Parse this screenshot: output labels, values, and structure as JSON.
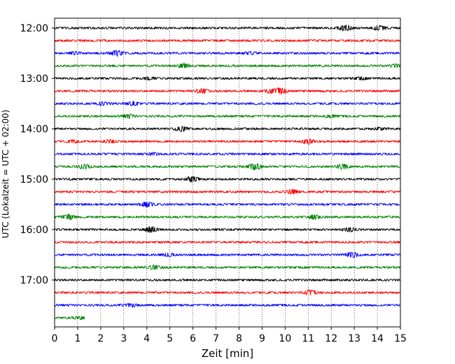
{
  "chart_data": {
    "type": "line",
    "title": "",
    "xlabel": "Zeit  [min]",
    "ylabel": "UTC (Lokalzeit = UTC + 02:00)",
    "xlim": [
      0,
      15
    ],
    "x_ticks": [
      "0",
      "1",
      "2",
      "3",
      "4",
      "5",
      "6",
      "7",
      "8",
      "9",
      "10",
      "11",
      "12",
      "13",
      "14",
      "15"
    ],
    "y_ticks": [
      {
        "label": "12:00",
        "trace": 0
      },
      {
        "label": "13:00",
        "trace": 4
      },
      {
        "label": "14:00",
        "trace": 8
      },
      {
        "label": "15:00",
        "trace": 12
      },
      {
        "label": "16:00",
        "trace": 16
      },
      {
        "label": "17:00",
        "trace": 20
      }
    ],
    "grid": "vertical dotted",
    "trace_interval_min": 15,
    "color_cycle": [
      "#000000",
      "#ff0000",
      "#0000ff",
      "#008000"
    ],
    "traces": [
      {
        "start": "12:00",
        "end_min": 15,
        "events": [
          [
            12.6,
            0.9
          ],
          [
            14.1,
            0.7
          ]
        ]
      },
      {
        "start": "12:15",
        "end_min": 15,
        "events": []
      },
      {
        "start": "12:30",
        "end_min": 15,
        "events": [
          [
            0.9,
            0.4
          ],
          [
            2.7,
            0.8
          ],
          [
            8.5,
            0.3
          ]
        ]
      },
      {
        "start": "12:45",
        "end_min": 15,
        "events": [
          [
            5.6,
            0.7
          ],
          [
            14.8,
            0.4
          ]
        ]
      },
      {
        "start": "13:00",
        "end_min": 15,
        "events": [
          [
            4.1,
            0.3
          ],
          [
            13.3,
            0.3
          ]
        ]
      },
      {
        "start": "13:15",
        "end_min": 15,
        "events": [
          [
            6.4,
            0.7
          ],
          [
            9.3,
            0.6
          ],
          [
            9.8,
            0.9
          ]
        ]
      },
      {
        "start": "13:30",
        "end_min": 15,
        "events": [
          [
            2.1,
            0.4
          ],
          [
            3.4,
            0.5
          ]
        ]
      },
      {
        "start": "13:45",
        "end_min": 15,
        "events": [
          [
            3.2,
            0.5
          ],
          [
            12.0,
            0.3
          ]
        ]
      },
      {
        "start": "14:00",
        "end_min": 15,
        "events": [
          [
            5.5,
            0.7
          ],
          [
            14.1,
            0.3
          ]
        ]
      },
      {
        "start": "14:15",
        "end_min": 15,
        "events": [
          [
            0.8,
            0.4
          ],
          [
            2.4,
            0.4
          ],
          [
            11.0,
            0.8
          ]
        ]
      },
      {
        "start": "14:30",
        "end_min": 15,
        "events": [
          [
            4.3,
            0.3
          ]
        ]
      },
      {
        "start": "14:45",
        "end_min": 15,
        "events": [
          [
            1.3,
            0.6
          ],
          [
            8.7,
            1.0
          ],
          [
            12.5,
            0.7
          ]
        ]
      },
      {
        "start": "15:00",
        "end_min": 15,
        "events": [
          [
            6.0,
            0.8
          ]
        ]
      },
      {
        "start": "15:15",
        "end_min": 15,
        "events": [
          [
            10.3,
            0.6
          ]
        ]
      },
      {
        "start": "15:30",
        "end_min": 15,
        "events": [
          [
            4.0,
            0.7
          ]
        ]
      },
      {
        "start": "15:45",
        "end_min": 15,
        "events": [
          [
            0.6,
            0.7
          ],
          [
            11.3,
            0.6
          ]
        ]
      },
      {
        "start": "16:00",
        "end_min": 15,
        "events": [
          [
            4.2,
            0.9
          ],
          [
            12.8,
            0.5
          ]
        ]
      },
      {
        "start": "16:15",
        "end_min": 15,
        "events": []
      },
      {
        "start": "16:30",
        "end_min": 15,
        "events": [
          [
            4.9,
            0.4
          ],
          [
            12.9,
            0.8
          ]
        ]
      },
      {
        "start": "16:45",
        "end_min": 15,
        "events": [
          [
            4.3,
            0.6
          ]
        ]
      },
      {
        "start": "17:00",
        "end_min": 15,
        "events": []
      },
      {
        "start": "17:15",
        "end_min": 15,
        "events": [
          [
            11.1,
            0.7
          ]
        ]
      },
      {
        "start": "17:30",
        "end_min": 15,
        "events": [
          [
            3.3,
            0.5
          ]
        ]
      },
      {
        "start": "17:45",
        "end_min": 1.3,
        "events": [
          [
            1.1,
            0.4
          ]
        ]
      }
    ]
  }
}
